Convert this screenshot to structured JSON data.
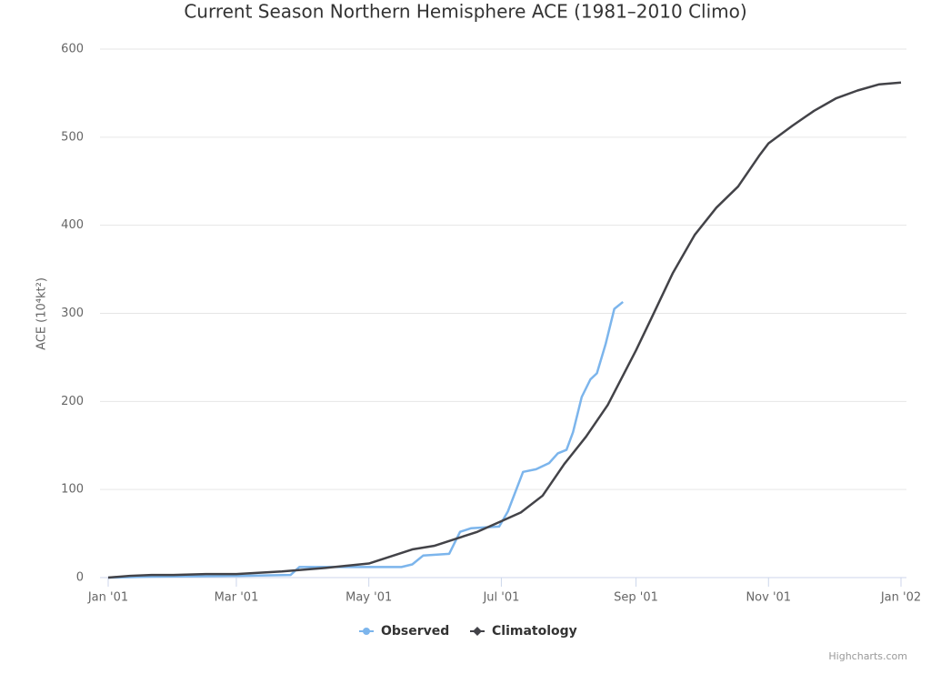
{
  "chart_data": {
    "type": "line",
    "title": "Current Season Northern Hemisphere ACE (1981–2010 Climo)",
    "y_label": "ACE (10⁴kt²)",
    "credit": "Highcharts.com",
    "xlim": [
      0,
      365
    ],
    "xticks": [
      {
        "value": 0,
        "label": "Jan '01"
      },
      {
        "value": 59,
        "label": "Mar '01"
      },
      {
        "value": 120,
        "label": "May '01"
      },
      {
        "value": 181,
        "label": "Jul '01"
      },
      {
        "value": 243,
        "label": "Sep '01"
      },
      {
        "value": 304,
        "label": "Nov '01"
      },
      {
        "value": 365,
        "label": "Jan '02"
      }
    ],
    "ylim": [
      0,
      600
    ],
    "yticks": [
      0,
      100,
      200,
      300,
      400,
      500,
      600
    ],
    "grid": true,
    "legend": "bottom",
    "series": [
      {
        "name": "Observed",
        "color": "#7cb5ec",
        "x": [
          0,
          20,
          60,
          84,
          88,
          135,
          140,
          145,
          157,
          162,
          167,
          180,
          184,
          191,
          197,
          203,
          207,
          211,
          214,
          218,
          222,
          225,
          229,
          233,
          237
        ],
        "values": [
          0,
          1,
          2,
          3,
          12,
          12,
          15,
          25,
          27,
          52,
          56,
          58,
          75,
          120,
          123,
          130,
          141,
          145,
          165,
          205,
          225,
          232,
          265,
          305,
          313
        ]
      },
      {
        "name": "Climatology",
        "color": "#434348",
        "x": [
          0,
          10,
          20,
          30,
          45,
          59,
          80,
          100,
          120,
          130,
          140,
          150,
          160,
          170,
          181,
          190,
          200,
          210,
          220,
          230,
          243,
          250,
          260,
          270,
          280,
          290,
          300,
          304,
          315,
          325,
          335,
          345,
          355,
          365
        ],
        "values": [
          0,
          2,
          3,
          3,
          4,
          4,
          7,
          11,
          16,
          24,
          32,
          36,
          44,
          52,
          64,
          74,
          93,
          129,
          160,
          196,
          258,
          294,
          346,
          389,
          420,
          444,
          480,
          493,
          513,
          530,
          544,
          553,
          560,
          562
        ]
      }
    ]
  }
}
